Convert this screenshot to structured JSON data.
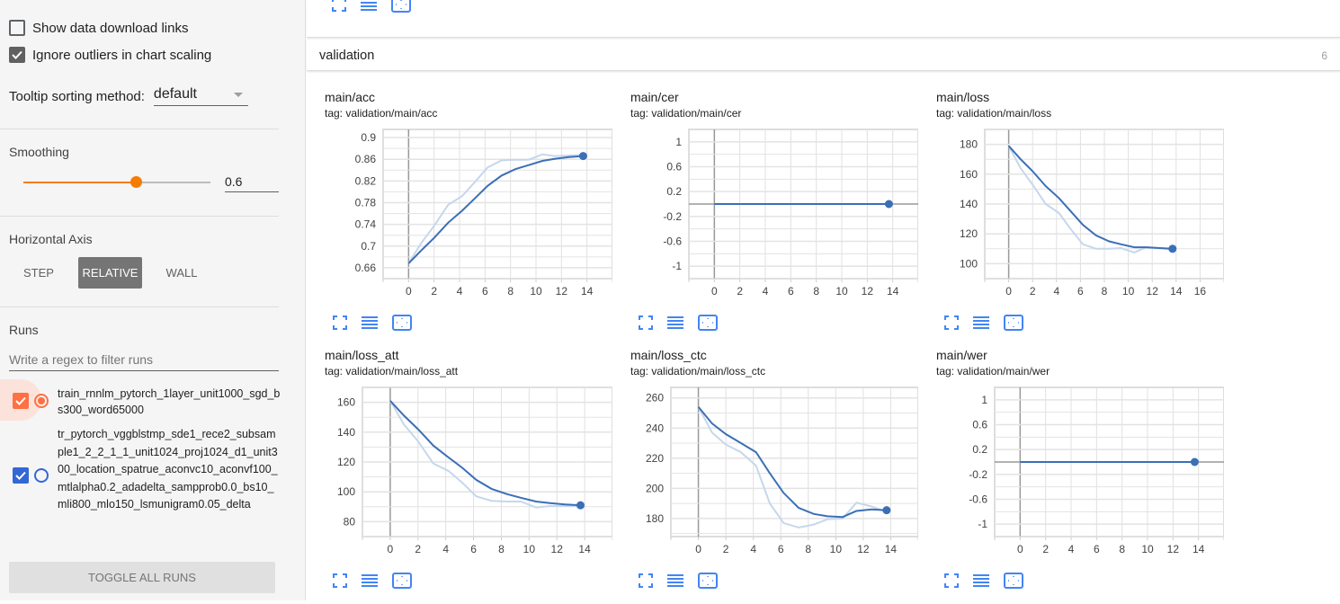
{
  "sidebar": {
    "show_download_links": {
      "label": "Show data download links",
      "checked": false
    },
    "ignore_outliers": {
      "label": "Ignore outliers in chart scaling",
      "checked": true
    },
    "tooltip_sorting": {
      "label": "Tooltip sorting method:",
      "value": "default"
    },
    "smoothing": {
      "label": "Smoothing",
      "value": "0.6",
      "percent": 60
    },
    "horizontal_axis": {
      "label": "Horizontal Axis",
      "options": [
        "STEP",
        "RELATIVE",
        "WALL"
      ],
      "selected": "RELATIVE"
    },
    "runs": {
      "label": "Runs",
      "filter_placeholder": "Write a regex to filter runs",
      "items": [
        {
          "name": "train_rnnlm_pytorch_1layer_unit1000_sgd_bs300_word65000",
          "checked": true,
          "color": "#ff7043",
          "radio_selected": true
        },
        {
          "name": "tr_pytorch_vggblstmp_sde1_rece2_subsample1_2_2_1_1_unit1024_proj1024_d1_unit300_location_spatrue_aconvc10_aconvf100_mtlalpha0.2_adadelta_sampprob0.0_bs10_mli800_mlo150_lsmunigram0.05_delta",
          "checked": true,
          "color": "#3367d6",
          "radio_selected": false
        }
      ],
      "toggle_all_label": "TOGGLE ALL RUNS"
    }
  },
  "main": {
    "category": {
      "title": "validation",
      "count": "6"
    }
  },
  "colors": {
    "line": "#3b6fb6",
    "line_raw": "#c6d7ec",
    "accent_orange": "#f57c00",
    "icon_blue": "#4285f4"
  },
  "chart_data": [
    {
      "type": "line",
      "title": "main/acc",
      "tag": "tag: validation/main/acc",
      "xlabel": "",
      "ylabel": "",
      "x_ticks": [
        0,
        2,
        4,
        6,
        8,
        10,
        12,
        14
      ],
      "y_ticks": [
        "0.66",
        "0.7",
        "0.74",
        "0.78",
        "0.82",
        "0.86",
        "0.9"
      ],
      "xlim": [
        -2,
        16
      ],
      "ylim": [
        0.64,
        0.915
      ],
      "series": [
        {
          "name": "smoothed",
          "x": [
            0,
            1,
            2,
            3.1,
            4.2,
            5.2,
            6.2,
            7.3,
            8.4,
            9.4,
            10.5,
            11.5,
            12.6,
            13.7
          ],
          "values": [
            0.668,
            0.692,
            0.715,
            0.743,
            0.765,
            0.788,
            0.811,
            0.83,
            0.842,
            0.849,
            0.857,
            0.861,
            0.864,
            0.866
          ]
        },
        {
          "name": "raw",
          "x": [
            0,
            1,
            2,
            3.1,
            4.2,
            5.2,
            6.2,
            7.3,
            8.4,
            9.4,
            10.5,
            11.5,
            12.6,
            13.7
          ],
          "values": [
            0.668,
            0.706,
            0.737,
            0.776,
            0.792,
            0.818,
            0.845,
            0.858,
            0.859,
            0.859,
            0.869,
            0.866,
            0.867,
            0.868
          ]
        }
      ]
    },
    {
      "type": "line",
      "title": "main/cer",
      "tag": "tag: validation/main/cer",
      "x_ticks": [
        0,
        2,
        4,
        6,
        8,
        10,
        12,
        14
      ],
      "y_ticks": [
        "-1",
        "-0.6",
        "-0.2",
        "0.2",
        "0.6",
        "1"
      ],
      "xlim": [
        -2,
        16
      ],
      "ylim": [
        -1.2,
        1.2
      ],
      "series": [
        {
          "name": "smoothed",
          "x": [
            0,
            13.7
          ],
          "values": [
            0,
            0
          ]
        }
      ]
    },
    {
      "type": "line",
      "title": "main/loss",
      "tag": "tag: validation/main/loss",
      "x_ticks": [
        0,
        2,
        4,
        6,
        8,
        10,
        12,
        14,
        16
      ],
      "y_ticks": [
        "100",
        "120",
        "140",
        "160",
        "180"
      ],
      "xlim": [
        -2,
        18
      ],
      "ylim": [
        90,
        190
      ],
      "series": [
        {
          "name": "smoothed",
          "x": [
            0,
            1,
            2,
            3.1,
            4.2,
            5.2,
            6.2,
            7.3,
            8.4,
            9.4,
            10.5,
            11.5,
            12.6,
            13.7
          ],
          "values": [
            179,
            170,
            162,
            152,
            144,
            135,
            126,
            119,
            115,
            113,
            111,
            111,
            110.5,
            110
          ]
        },
        {
          "name": "raw",
          "x": [
            0,
            1,
            2,
            3.1,
            4.2,
            5.2,
            6.2,
            7.3,
            8.4,
            9.4,
            10.5,
            11.5,
            12.6,
            13.7
          ],
          "values": [
            179,
            164,
            153,
            140,
            134,
            123,
            113,
            110,
            110,
            110.5,
            107.5,
            111,
            110.5,
            109.5
          ]
        }
      ]
    },
    {
      "type": "line",
      "title": "main/loss_att",
      "tag": "tag: validation/main/loss_att",
      "x_ticks": [
        0,
        2,
        4,
        6,
        8,
        10,
        12,
        14
      ],
      "y_ticks": [
        "80",
        "100",
        "120",
        "140",
        "160"
      ],
      "xlim": [
        -2,
        16
      ],
      "ylim": [
        70,
        170
      ],
      "series": [
        {
          "name": "smoothed",
          "x": [
            0,
            1,
            2,
            3.1,
            4.2,
            5.2,
            6.2,
            7.3,
            8.4,
            9.4,
            10.5,
            11.5,
            12.6,
            13.7
          ],
          "values": [
            161,
            151,
            142,
            131,
            123,
            116,
            108,
            102,
            98.5,
            96,
            93.5,
            92.5,
            91.5,
            91
          ]
        },
        {
          "name": "raw",
          "x": [
            0,
            1,
            2,
            3.1,
            4.2,
            5.2,
            6.2,
            7.3,
            8.4,
            9.4,
            10.5,
            11.5,
            12.6,
            13.7
          ],
          "values": [
            161,
            145,
            134,
            119,
            114,
            106,
            97,
            94,
            93.5,
            93.5,
            89.5,
            90.5,
            90.5,
            90.5
          ]
        }
      ]
    },
    {
      "type": "line",
      "title": "main/loss_ctc",
      "tag": "tag: validation/main/loss_ctc",
      "x_ticks": [
        0,
        2,
        4,
        6,
        8,
        10,
        12,
        14
      ],
      "y_ticks": [
        "180",
        "200",
        "220",
        "240",
        "260"
      ],
      "xlim": [
        -2,
        16
      ],
      "ylim": [
        168,
        267
      ],
      "series": [
        {
          "name": "smoothed",
          "x": [
            0,
            1,
            2,
            3.1,
            4.2,
            5.2,
            6.2,
            7.3,
            8.4,
            9.4,
            10.5,
            11.5,
            12.6,
            13.7
          ],
          "values": [
            254,
            243,
            236,
            230,
            224,
            210,
            197,
            187,
            183,
            181.5,
            181,
            185,
            186,
            185.5
          ]
        },
        {
          "name": "raw",
          "x": [
            0,
            1,
            2,
            3.1,
            4.2,
            5.2,
            6.2,
            7.3,
            8.4,
            9.4,
            10.5,
            11.5,
            12.6,
            13.7
          ],
          "values": [
            254,
            237,
            229,
            224,
            215,
            190,
            177,
            174,
            176,
            179.5,
            180,
            190.5,
            188,
            184.5
          ]
        }
      ]
    },
    {
      "type": "line",
      "title": "main/wer",
      "tag": "tag: validation/main/wer",
      "x_ticks": [
        0,
        2,
        4,
        6,
        8,
        10,
        12,
        14
      ],
      "y_ticks": [
        "-1",
        "-0.6",
        "-0.2",
        "0.2",
        "0.6",
        "1"
      ],
      "xlim": [
        -2,
        16
      ],
      "ylim": [
        -1.2,
        1.2
      ],
      "series": [
        {
          "name": "smoothed",
          "x": [
            0,
            13.7
          ],
          "values": [
            0,
            0
          ]
        }
      ]
    }
  ]
}
